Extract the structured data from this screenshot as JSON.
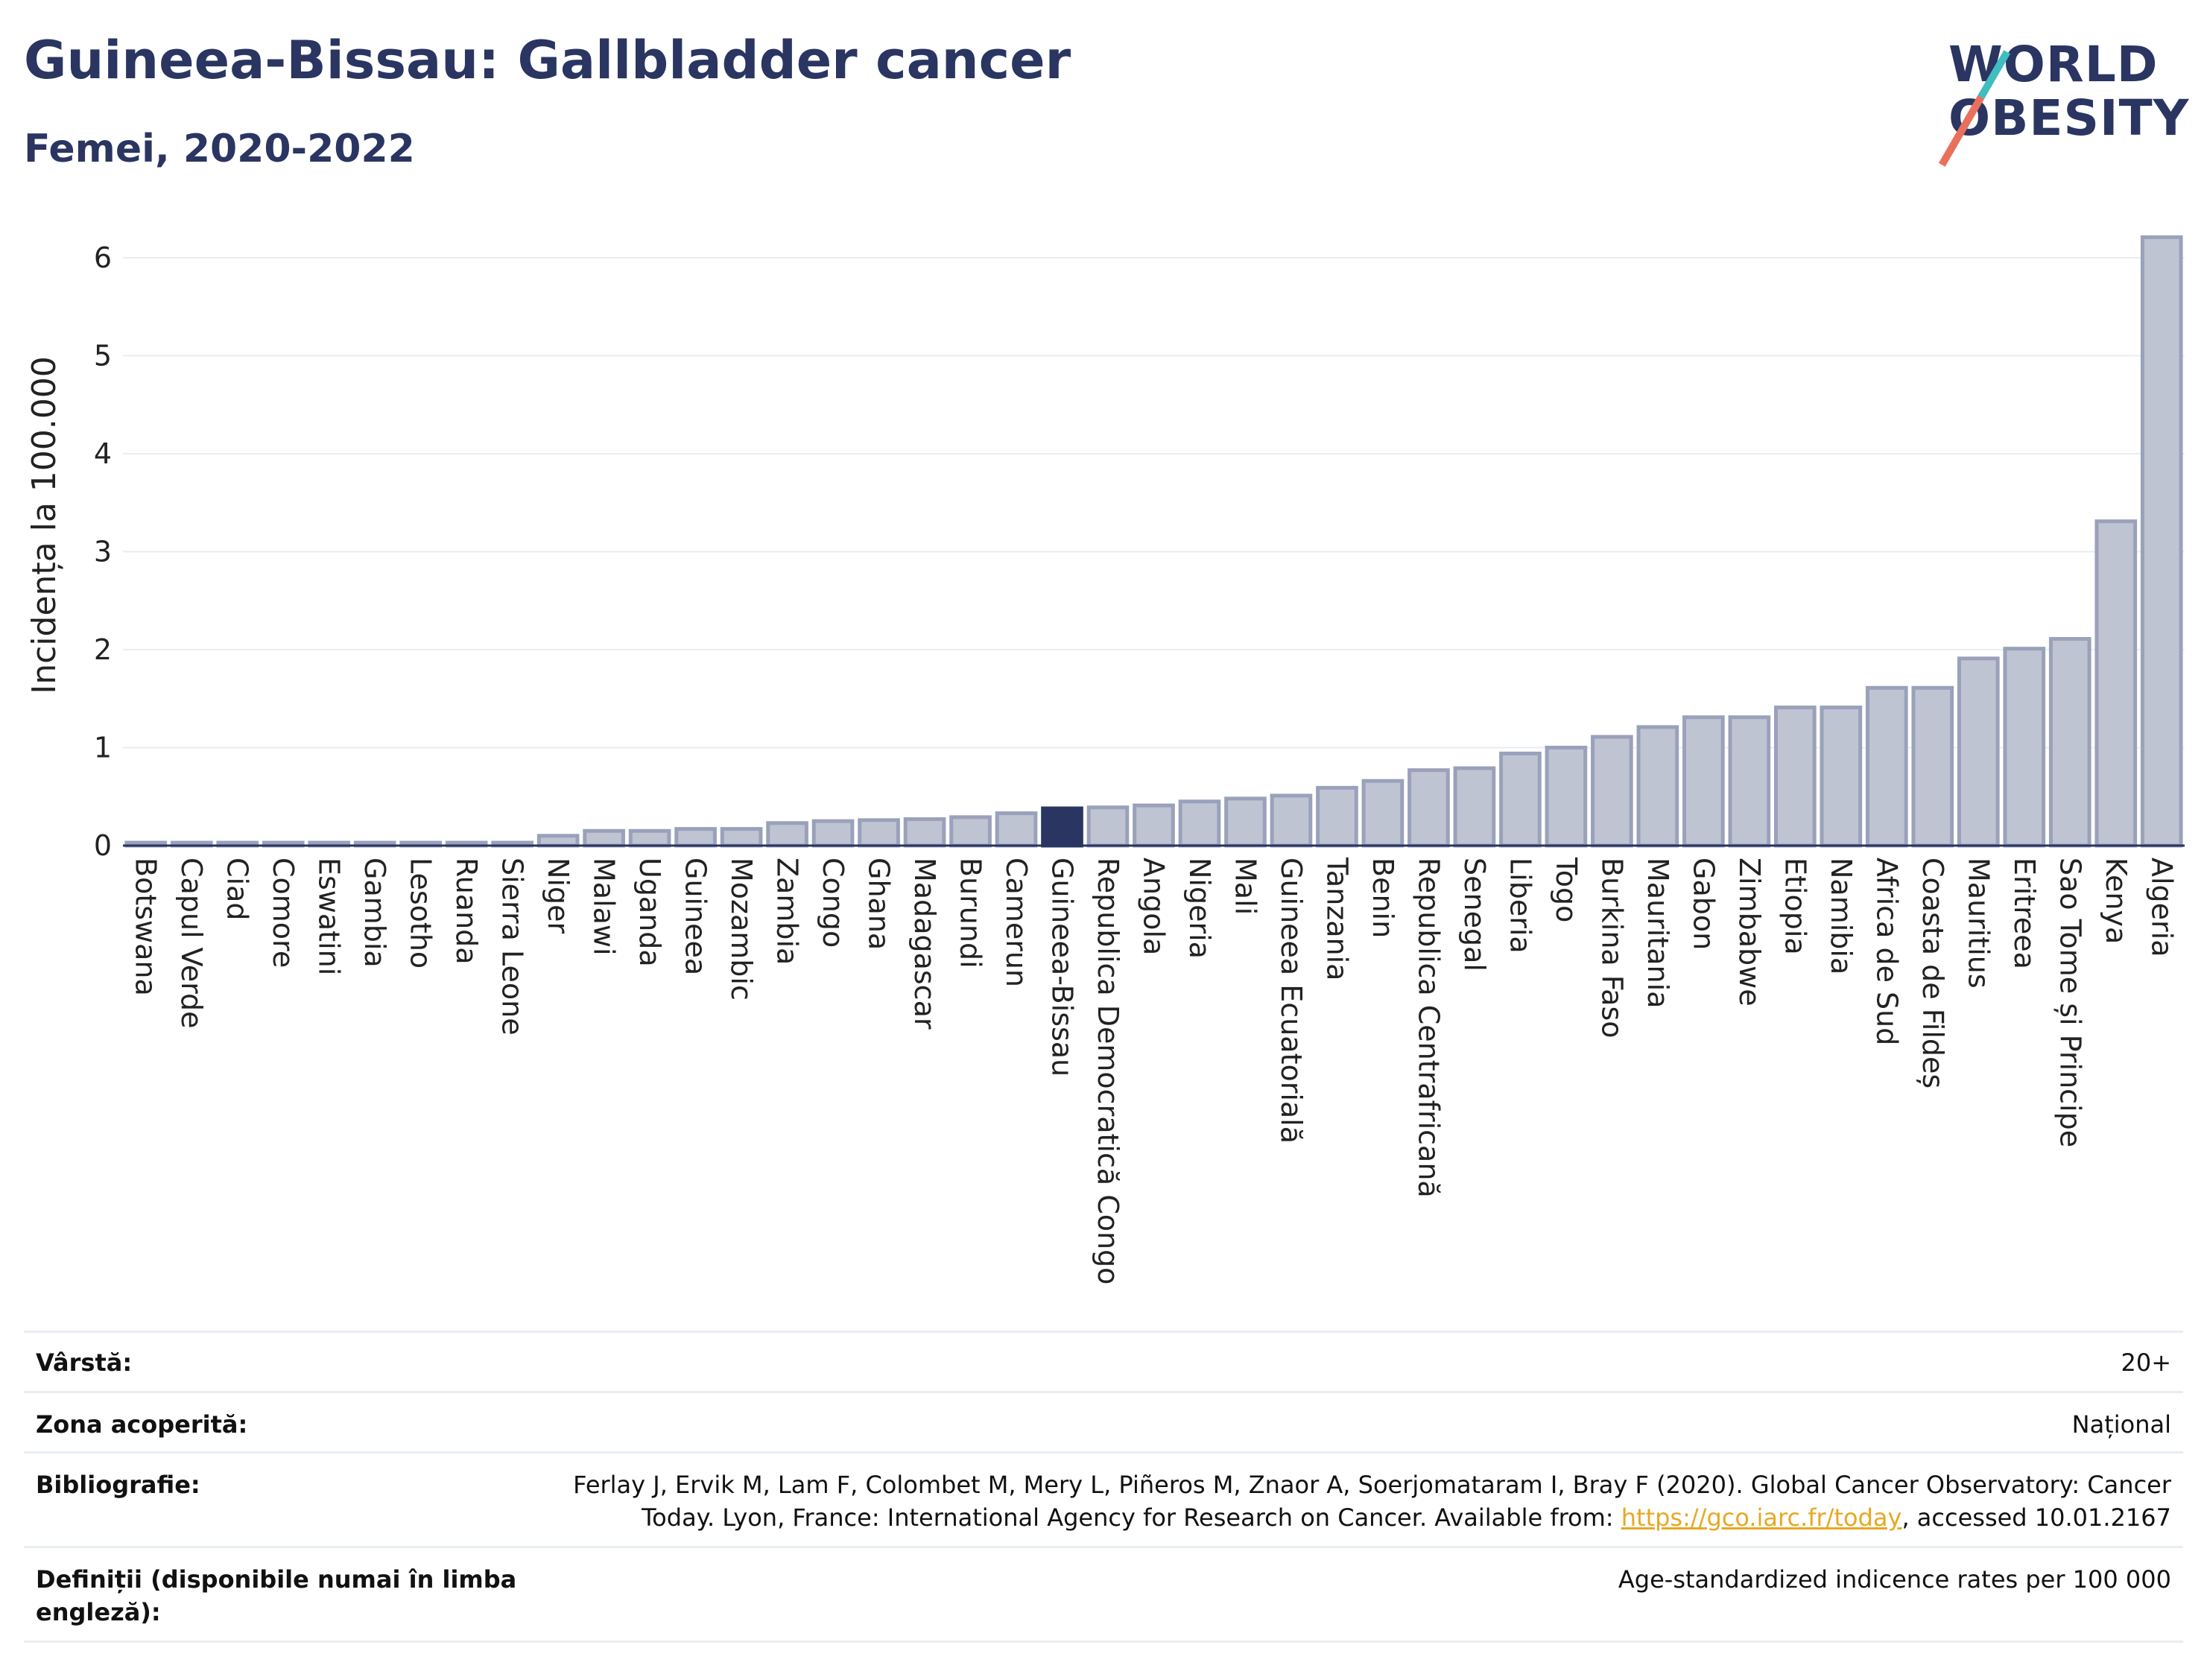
{
  "header": {
    "title": "Guineea-Bissau: Gallbladder cancer",
    "subtitle": "Femei, 2020-2022"
  },
  "logo": {
    "line1": "WORLD",
    "line2": "OBESITY"
  },
  "colors": {
    "bar": "#bfc4d3",
    "bar_border": "#9aa1ba",
    "highlight": "#2a3561",
    "grid": "#e8edf2",
    "axis": "#2a3561"
  },
  "chart_data": {
    "type": "bar",
    "ylabel": "Incidența la 100.000",
    "ylim": [
      0,
      6.5
    ],
    "yticks": [
      0,
      1,
      2,
      3,
      4,
      5,
      6
    ],
    "highlight": "Guineea-Bissau",
    "grid": true,
    "categories": [
      "Botswana",
      "Capul Verde",
      "Ciad",
      "Comore",
      "Eswatini",
      "Gambia",
      "Lesotho",
      "Ruanda",
      "Sierra Leone",
      "Niger",
      "Malawi",
      "Uganda",
      "Guineea",
      "Mozambic",
      "Zambia",
      "Congo",
      "Ghana",
      "Madagascar",
      "Burundi",
      "Camerun",
      "Guineea-Bissau",
      "Republica Democratică Congo",
      "Angola",
      "Nigeria",
      "Mali",
      "Guineea Ecuatorială",
      "Tanzania",
      "Benin",
      "Republica Centrafricană",
      "Senegal",
      "Liberia",
      "Togo",
      "Burkina Faso",
      "Mauritania",
      "Gabon",
      "Zimbabwe",
      "Etiopia",
      "Namibia",
      "Africa de Sud",
      "Coasta de Fildeș",
      "Mauritius",
      "Eritreea",
      "Sao Tome și Principe",
      "Kenya",
      "Algeria"
    ],
    "values": [
      0.03,
      0.03,
      0.03,
      0.03,
      0.03,
      0.03,
      0.03,
      0.03,
      0.03,
      0.1,
      0.15,
      0.15,
      0.17,
      0.17,
      0.23,
      0.25,
      0.26,
      0.27,
      0.29,
      0.33,
      0.38,
      0.39,
      0.41,
      0.45,
      0.48,
      0.51,
      0.59,
      0.66,
      0.77,
      0.79,
      0.94,
      1.0,
      1.11,
      1.21,
      1.31,
      1.31,
      1.41,
      1.41,
      1.61,
      1.61,
      1.91,
      2.01,
      2.11,
      3.31,
      6.21
    ]
  },
  "info": {
    "rows": [
      {
        "label": "Vârstă:",
        "value": "20+"
      },
      {
        "label": "Zona acoperită:",
        "value": "Național"
      },
      {
        "label": "Bibliografie:",
        "value_line1": "Ferlay J, Ervik M, Lam F, Colombet M, Mery L, Piñeros M, Znaor A, Soerjomataram I, Bray F (2020). Global Cancer Observatory: Cancer",
        "value_line2_pre": "Today. Lyon, France: International Agency for Research on Cancer. Available from: ",
        "link": "https://gco.iarc.fr/today",
        "value_line2_post": ", accessed 10.01.2167"
      },
      {
        "label_line1": "Definiții (disponibile numai în limba",
        "label_line2": "engleză):",
        "value": "Age-standardized indicence rates per 100 000"
      }
    ]
  }
}
